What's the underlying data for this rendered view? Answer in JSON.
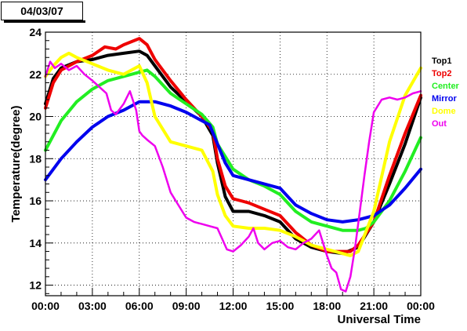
{
  "date_label": "04/03/07",
  "chart_data": {
    "type": "line",
    "xlabel": "Universal Time",
    "ylabel": "Temperature(degree)",
    "xlim": [
      0,
      24
    ],
    "ylim": [
      11.5,
      24
    ],
    "x_ticks": [
      0,
      3,
      6,
      9,
      12,
      15,
      18,
      21,
      24
    ],
    "x_tick_labels": [
      "00:00",
      "03:00",
      "06:00",
      "09:00",
      "12:00",
      "15:00",
      "18:00",
      "21:00",
      "00:00"
    ],
    "y_ticks": [
      12,
      14,
      16,
      18,
      20,
      22,
      24
    ],
    "y_tick_labels": [
      "12",
      "14",
      "16",
      "18",
      "20",
      "22",
      "24"
    ],
    "grid": true,
    "legend_position": "right",
    "series": [
      {
        "name": "Top1",
        "color": "#000000",
        "x": [
          0,
          0.5,
          1,
          2,
          3,
          4,
          5,
          6,
          6.5,
          7,
          8,
          9,
          10,
          10.7,
          11,
          11.5,
          12,
          12.5,
          13,
          14,
          15,
          16,
          17,
          18,
          19,
          20,
          21,
          22,
          23,
          24
        ],
        "y": [
          20.6,
          21.8,
          22.3,
          22.6,
          22.7,
          22.9,
          23.0,
          23.1,
          22.9,
          22.4,
          21.4,
          20.7,
          20.0,
          19.1,
          17.8,
          16.2,
          15.5,
          15.5,
          15.5,
          15.3,
          15.0,
          14.2,
          13.8,
          13.6,
          13.5,
          13.8,
          15.0,
          16.8,
          18.7,
          20.9
        ]
      },
      {
        "name": "Top2",
        "color": "#ee0000",
        "x": [
          0,
          0.5,
          1,
          2,
          3,
          3.8,
          4.5,
          5,
          6,
          6.5,
          7,
          8,
          9,
          10,
          10.7,
          11,
          11.5,
          12,
          12.5,
          13,
          14,
          15,
          16,
          17,
          18,
          19,
          19.5,
          20,
          21,
          22,
          23,
          24
        ],
        "y": [
          20.4,
          21.6,
          22.2,
          22.6,
          22.9,
          23.3,
          23.2,
          23.4,
          23.7,
          23.4,
          22.7,
          21.7,
          20.8,
          20.0,
          19.3,
          18.0,
          16.7,
          16.1,
          16.0,
          15.9,
          15.6,
          15.3,
          14.5,
          13.9,
          13.6,
          13.6,
          13.6,
          13.9,
          15.0,
          17.2,
          19.2,
          21.0
        ]
      },
      {
        "name": "Center",
        "color": "#22ee22",
        "x": [
          0,
          1,
          2,
          3,
          4,
          5,
          6,
          6.5,
          7,
          8,
          9,
          10,
          10.7,
          11,
          12,
          13,
          14,
          15,
          16,
          17,
          18,
          19,
          20,
          20.5,
          21,
          22,
          23,
          24
        ],
        "y": [
          18.4,
          19.8,
          20.7,
          21.3,
          21.7,
          21.9,
          22.1,
          22.2,
          21.9,
          21.1,
          20.6,
          20.1,
          19.5,
          18.7,
          17.5,
          17.0,
          16.7,
          16.3,
          15.5,
          15.0,
          14.8,
          14.6,
          14.6,
          14.7,
          15.0,
          16.0,
          17.4,
          19.0
        ]
      },
      {
        "name": "Mirror",
        "color": "#0000ee",
        "x": [
          0,
          1,
          2,
          3,
          4,
          5,
          6,
          7,
          8,
          9,
          10,
          10.5,
          11,
          11.5,
          12,
          13,
          14,
          15,
          16,
          17,
          18,
          19,
          20,
          21,
          22,
          23,
          24
        ],
        "y": [
          17.0,
          18.0,
          18.8,
          19.5,
          20.0,
          20.3,
          20.7,
          20.7,
          20.5,
          20.2,
          19.8,
          19.6,
          18.7,
          17.8,
          17.2,
          17.0,
          16.8,
          16.6,
          15.8,
          15.4,
          15.1,
          15.0,
          15.1,
          15.3,
          15.8,
          16.6,
          17.5
        ]
      },
      {
        "name": "Dome",
        "color": "#ffff00",
        "x": [
          0,
          0.5,
          1,
          1.5,
          2,
          3,
          4,
          5,
          6,
          6.5,
          7,
          8,
          9,
          10,
          10.7,
          11,
          11.5,
          12,
          13,
          14,
          15,
          16,
          17,
          18,
          19,
          19.5,
          20,
          21,
          22,
          23,
          24
        ],
        "y": [
          21.9,
          22.4,
          22.8,
          23.0,
          22.8,
          22.5,
          22.2,
          22.0,
          22.4,
          21.6,
          20.0,
          18.8,
          18.6,
          18.4,
          17.4,
          16.3,
          15.3,
          14.8,
          14.7,
          14.7,
          14.6,
          14.3,
          13.9,
          13.7,
          13.5,
          13.4,
          13.6,
          15.5,
          18.8,
          21.0,
          22.3
        ]
      },
      {
        "name": "Out",
        "color": "#ee00ee",
        "x": [
          0,
          0.3,
          0.6,
          1,
          1.5,
          2,
          2.5,
          3,
          3.3,
          3.6,
          3.9,
          4.2,
          4.5,
          5,
          5.4,
          5.8,
          6,
          6.2,
          6.5,
          7,
          7.5,
          8,
          8.5,
          9,
          9.5,
          10,
          10.5,
          11,
          11.3,
          11.6,
          12,
          12.5,
          13,
          13.3,
          13.6,
          14,
          14.5,
          15,
          15.5,
          16,
          16.5,
          17,
          17.5,
          18,
          18.3,
          18.6,
          18.9,
          19.2,
          19.5,
          19.8,
          20.1,
          20.4,
          20.7,
          21,
          21.5,
          22,
          22.5,
          23,
          23.5,
          24
        ],
        "y": [
          21.9,
          22.6,
          22.3,
          22.5,
          22.2,
          22.4,
          22.0,
          21.7,
          21.5,
          21.3,
          21.1,
          20.3,
          20.1,
          20.6,
          21.2,
          20.3,
          19.3,
          19.1,
          18.9,
          18.6,
          17.6,
          16.4,
          15.8,
          15.2,
          15.0,
          14.9,
          14.8,
          14.7,
          14.2,
          13.7,
          13.6,
          13.9,
          14.3,
          14.7,
          14.0,
          13.7,
          14.0,
          14.1,
          13.8,
          13.7,
          14.0,
          14.2,
          14.6,
          13.4,
          12.8,
          12.6,
          11.8,
          11.7,
          12.4,
          13.8,
          15.5,
          17.2,
          18.8,
          20.2,
          20.8,
          20.9,
          20.8,
          20.9,
          21.1,
          21.2
        ]
      }
    ]
  }
}
